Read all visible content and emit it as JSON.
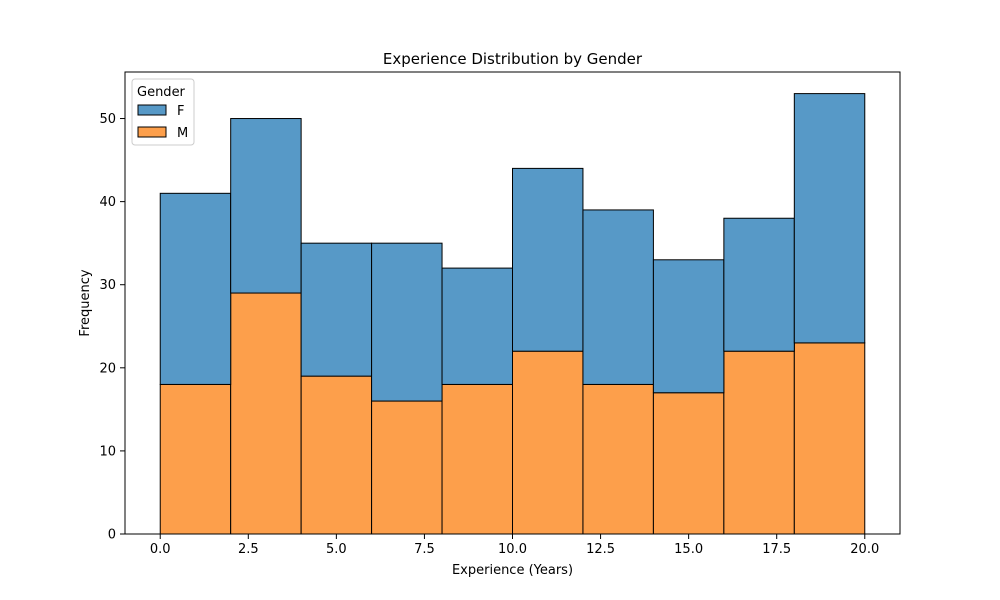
{
  "chart_data": {
    "type": "bar",
    "subtype": "stacked-histogram",
    "title": "Experience Distribution by Gender",
    "xlabel": "Experience (Years)",
    "ylabel": "Frequency",
    "xlim": [
      -1,
      21
    ],
    "ylim": [
      0,
      55.6
    ],
    "xticks": [
      0.0,
      2.5,
      5.0,
      7.5,
      10.0,
      12.5,
      15.0,
      17.5,
      20.0
    ],
    "xtick_labels": [
      "0.0",
      "2.5",
      "5.0",
      "7.5",
      "10.0",
      "12.5",
      "15.0",
      "17.5",
      "20.0"
    ],
    "yticks": [
      0,
      10,
      20,
      30,
      40,
      50
    ],
    "ytick_labels": [
      "0",
      "10",
      "20",
      "30",
      "40",
      "50"
    ],
    "bin_edges": [
      0,
      2,
      4,
      6,
      8,
      10,
      12,
      14,
      16,
      18,
      20
    ],
    "series": [
      {
        "name": "M",
        "color": "#fd9f4b",
        "values": [
          18,
          29,
          19,
          16,
          18,
          22,
          18,
          17,
          22,
          23
        ]
      },
      {
        "name": "F",
        "color": "#5799c7",
        "values": [
          23,
          21,
          16,
          19,
          14,
          22,
          21,
          16,
          16,
          30
        ]
      }
    ],
    "legend": {
      "title": "Gender",
      "placement": "top-left",
      "entries": [
        {
          "label": "F",
          "color": "#5799c7"
        },
        {
          "label": "M",
          "color": "#fd9f4b"
        }
      ]
    },
    "grid": false
  }
}
